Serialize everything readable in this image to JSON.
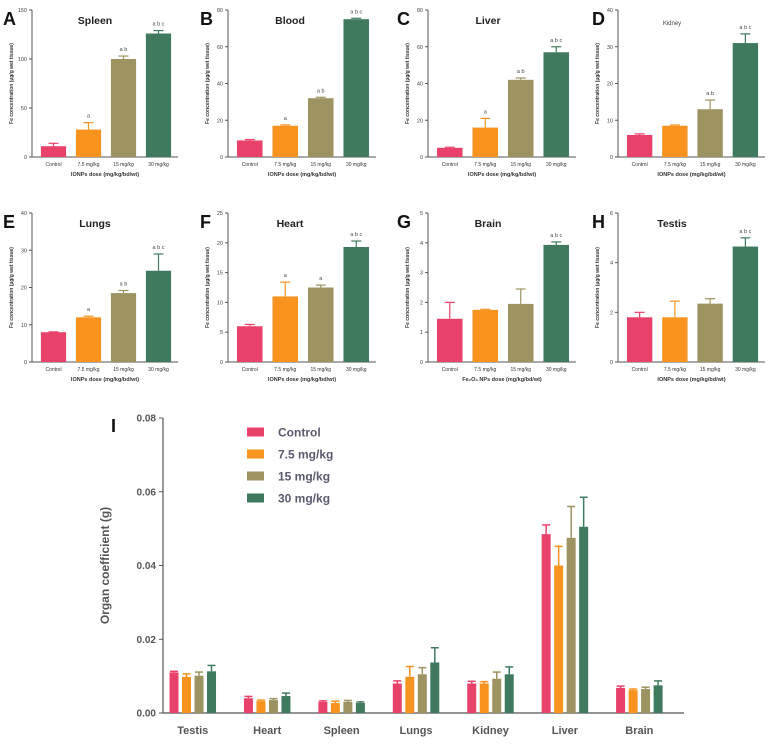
{
  "colors": {
    "control": "#e8416a",
    "d75": "#f7931e",
    "d15": "#9c9360",
    "d30": "#3f7a5e",
    "axis": "#555555",
    "text": "#222222"
  },
  "chart_data": [
    {
      "letter": "A",
      "type": "bar",
      "title": "Spleen",
      "ylabel": "Fe concentration (µg/g wet tissue)",
      "xlabel": "IONPs dose (mg/kg/bd/wt)",
      "categories": [
        "Control",
        "7.5 mg/kg",
        "15 mg/kg",
        "30 mg/kg"
      ],
      "values": [
        11,
        28,
        100,
        126
      ],
      "errors": [
        3,
        7,
        3,
        3
      ],
      "sig": [
        "",
        "a",
        "a b",
        "a b c"
      ],
      "ylim": [
        0,
        150
      ],
      "ticks": [
        "0",
        "50",
        "100",
        "150"
      ],
      "tickvals": [
        0,
        50,
        100,
        150
      ]
    },
    {
      "letter": "B",
      "type": "bar",
      "title": "Blood",
      "ylabel": "Fe concentration (µg/g wet tissue)",
      "xlabel": "IONPs dose (mg/kg/bd/wt)",
      "categories": [
        "Control",
        "7.5 mg/kg",
        "15 mg/kg",
        "30 mg/kg"
      ],
      "values": [
        9,
        17,
        32,
        75
      ],
      "errors": [
        0.5,
        0.5,
        0.5,
        0.5
      ],
      "sig": [
        "",
        "a",
        "a b",
        "a b c"
      ],
      "ylim": [
        0,
        80
      ],
      "ticks": [
        "0",
        "20",
        "40",
        "60",
        "80"
      ],
      "tickvals": [
        0,
        20,
        40,
        60,
        80
      ]
    },
    {
      "letter": "C",
      "type": "bar",
      "title": "Liver",
      "ylabel": "Fe concentration (µg/g wet tissue)",
      "xlabel": "IONPs dose (mg/kg/bd/wt)",
      "categories": [
        "Control",
        "7.5 mg/kg",
        "15 mg/kg",
        "30 mg/kg"
      ],
      "values": [
        5,
        16,
        42,
        57
      ],
      "errors": [
        0.3,
        5,
        1,
        3
      ],
      "sig": [
        "",
        "a",
        "a b",
        "a b c"
      ],
      "ylim": [
        0,
        80
      ],
      "ticks": [
        "0",
        "20",
        "40",
        "60",
        "80"
      ],
      "tickvals": [
        0,
        20,
        40,
        60,
        80
      ]
    },
    {
      "letter": "D",
      "type": "bar",
      "title": "Kidney",
      "ylabel": "Fe concentration (µg/g wet tissue)",
      "xlabel": "IONPs dose (mg/kg/bd/wt)",
      "categories": [
        "Control",
        "7.5 mg/kg",
        "15 mg/kg",
        "30 mg/kg"
      ],
      "values": [
        6,
        8.5,
        13,
        31
      ],
      "errors": [
        0.3,
        0.2,
        2.5,
        2.5
      ],
      "sig": [
        "",
        "",
        "a b",
        "a b c"
      ],
      "ylim": [
        0,
        40
      ],
      "ticks": [
        "0",
        "10",
        "20",
        "30",
        "40"
      ],
      "tickvals": [
        0,
        10,
        20,
        30,
        40
      ]
    },
    {
      "letter": "E",
      "type": "bar",
      "title": "Lungs",
      "ylabel": "Fe concentration (µg/g wet tissue)",
      "xlabel": "IONPs dose (mg/kg/bd/wt)",
      "categories": [
        "Control",
        "7.5 mg/kg",
        "15 mg/kg",
        "30 mg/kg"
      ],
      "values": [
        8,
        12,
        18.5,
        24.5
      ],
      "errors": [
        0.1,
        0.3,
        0.7,
        4.5
      ],
      "sig": [
        "",
        "a",
        "a b",
        "a b c"
      ],
      "ylim": [
        0,
        40
      ],
      "ticks": [
        "0",
        "10",
        "20",
        "30",
        "40"
      ],
      "tickvals": [
        0,
        10,
        20,
        30,
        40
      ]
    },
    {
      "letter": "F",
      "type": "bar",
      "title": "Heart",
      "ylabel": "Fe concentration (µg/g wet tissue)",
      "xlabel": "IONPs dose (mg/kg/bd/wt)",
      "categories": [
        "Control",
        "7.5 mg/kg",
        "15 mg/kg",
        "30 mg/kg"
      ],
      "values": [
        6,
        11,
        12.5,
        19.3
      ],
      "errors": [
        0.3,
        2.4,
        0.4,
        1
      ],
      "sig": [
        "",
        "a",
        "a",
        "a b c"
      ],
      "ylim": [
        0,
        25
      ],
      "ticks": [
        "0",
        "5",
        "10",
        "15",
        "20",
        "25"
      ],
      "tickvals": [
        0,
        5,
        10,
        15,
        20,
        25
      ]
    },
    {
      "letter": "G",
      "type": "bar",
      "title": "Brain",
      "ylabel": "Fe concentration (µg/g wet tissue)",
      "xlabel": "Fe₂O₃ NPs dose (mg/kg/bd/wt)",
      "categories": [
        "Control",
        "7.5 mg/kg",
        "15 mg/kg",
        "30 mg/kg"
      ],
      "values": [
        1.45,
        1.75,
        1.95,
        3.93
      ],
      "errors": [
        0.55,
        0.02,
        0.5,
        0.1
      ],
      "sig": [
        "",
        "",
        "",
        "a b c"
      ],
      "ylim": [
        0,
        5
      ],
      "ticks": [
        "0",
        "1",
        "2",
        "3",
        "4",
        "5"
      ],
      "tickvals": [
        0,
        1,
        2,
        3,
        4,
        5
      ]
    },
    {
      "letter": "H",
      "type": "bar",
      "title": "Testis",
      "ylabel": "Fe concentration (µg/g wet tissue)",
      "xlabel": "IONPs dose (mg/kg/bd/wt)",
      "categories": [
        "Control",
        "7.5 mg/kg",
        "15 mg/kg",
        "30 mg/kg"
      ],
      "values": [
        1.8,
        1.8,
        2.35,
        4.65
      ],
      "errors": [
        0.2,
        0.65,
        0.2,
        0.35
      ],
      "sig": [
        "",
        "",
        "",
        "a b c"
      ],
      "ylim": [
        0,
        6
      ],
      "ticks": [
        "0",
        "2",
        "4",
        "6"
      ],
      "tickvals": [
        0,
        2,
        4,
        6
      ]
    },
    {
      "letter": "I",
      "type": "bar",
      "title": "",
      "ylabel": "Organ coefficient (g)",
      "xlabel": "",
      "categories": [
        "Testis",
        "Heart",
        "Spleen",
        "Lungs",
        "Kidney",
        "Liver",
        "Brain"
      ],
      "legend": [
        "Control",
        "7.5 mg/kg",
        "15 mg/kg",
        "30 mg/kg"
      ],
      "series": [
        {
          "name": "Control",
          "values": [
            0.011,
            0.004,
            0.003,
            0.008,
            0.008,
            0.0485,
            0.0068
          ],
          "errors": [
            0.0003,
            0.0005,
            0.0003,
            0.0007,
            0.0006,
            0.0025,
            0.0005
          ]
        },
        {
          "name": "7.5 mg/kg",
          "values": [
            0.0098,
            0.0032,
            0.0027,
            0.0098,
            0.008,
            0.04,
            0.0062
          ],
          "errors": [
            0.0008,
            0.0003,
            0.0005,
            0.0028,
            0.0005,
            0.0052,
            0.0003
          ]
        },
        {
          "name": "15 mg/kg",
          "values": [
            0.0101,
            0.0035,
            0.003,
            0.0105,
            0.0093,
            0.0475,
            0.0065
          ],
          "errors": [
            0.001,
            0.0004,
            0.0004,
            0.0018,
            0.0018,
            0.0085,
            0.0005
          ]
        },
        {
          "name": "30 mg/kg",
          "values": [
            0.0113,
            0.0046,
            0.0027,
            0.0137,
            0.0105,
            0.0505,
            0.0075
          ],
          "errors": [
            0.0016,
            0.0008,
            0.0003,
            0.004,
            0.002,
            0.008,
            0.0012
          ]
        }
      ],
      "ylim": [
        0,
        0.08
      ],
      "ticks": [
        "0.00",
        "0.02",
        "0.04",
        "0.06",
        "0.08"
      ],
      "tickvals": [
        0,
        0.02,
        0.04,
        0.06,
        0.08
      ]
    }
  ]
}
